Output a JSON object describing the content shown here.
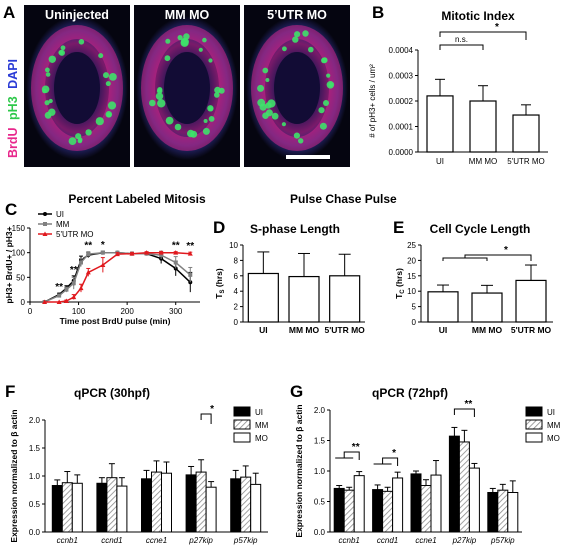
{
  "panels": {
    "A": {
      "letter": "A",
      "columns": [
        "Uninjected",
        "MM MO",
        "5’UTR MO"
      ],
      "channel_labels": [
        {
          "text": "BrdU",
          "color": "#e8288c"
        },
        {
          "text": "pH3",
          "color": "#2ec84a"
        },
        {
          "text": "DAPI",
          "color": "#2a3bd6"
        }
      ]
    },
    "B": {
      "letter": "B"
    },
    "C": {
      "letter": "C"
    },
    "D": {
      "letter": "D"
    },
    "E": {
      "letter": "E"
    },
    "F": {
      "letter": "F"
    },
    "G": {
      "letter": "G"
    }
  },
  "section_title": "Pulse Chase Pulse",
  "colors": {
    "ui": "#000000",
    "mm": "#808080",
    "mo": "#e0191e",
    "hatch": "#9a9a9a"
  },
  "chart_data": [
    {
      "id": "B",
      "type": "bar",
      "title": "Mitotic Index",
      "ylabel": "# of pH3+ cells / um²",
      "categories": [
        "UI",
        "MM MO",
        "5'UTR MO"
      ],
      "values": [
        0.00022,
        0.0002,
        0.000145
      ],
      "errors": [
        6.5e-05,
        6e-05,
        4e-05
      ],
      "ylim": [
        0,
        0.0004
      ],
      "yticks": [
        "0.0000",
        "0.0001",
        "0.0002",
        "0.0003",
        "0.0004"
      ],
      "annotations": [
        {
          "from": 0,
          "to": 1,
          "label": "n.s."
        },
        {
          "from": 0,
          "to": 2,
          "label": "*"
        }
      ]
    },
    {
      "id": "C",
      "type": "line",
      "title": "Percent Labeled Mitosis",
      "xlabel": "Time post BrdU pulse (min)",
      "ylabel": "pH3+ BrdU+ / pH3+",
      "xlim": [
        0,
        350
      ],
      "ylim": [
        0,
        150
      ],
      "xticks": [
        "0",
        "100",
        "200",
        "300"
      ],
      "yticks": [
        "0",
        "50",
        "100",
        "150"
      ],
      "x": [
        30,
        60,
        75,
        90,
        105,
        120,
        150,
        180,
        210,
        240,
        270,
        300,
        330
      ],
      "series": [
        {
          "name": "UI",
          "values": [
            0,
            15,
            28,
            43,
            85,
            95,
            100,
            100,
            98,
            98,
            88,
            68,
            40
          ],
          "errors": [
            0,
            3,
            5,
            10,
            8,
            5,
            3,
            2,
            3,
            3,
            10,
            15,
            20
          ]
        },
        {
          "name": "MM",
          "values": [
            0,
            13,
            25,
            38,
            80,
            97,
            100,
            100,
            98,
            98,
            95,
            80,
            55
          ],
          "errors": [
            0,
            3,
            5,
            12,
            8,
            5,
            3,
            2,
            3,
            3,
            8,
            12,
            15
          ]
        },
        {
          "name": "5'UTR MO",
          "values": [
            0,
            0,
            2,
            10,
            28,
            60,
            75,
            97,
            98,
            100,
            100,
            100,
            98
          ],
          "errors": [
            0,
            0,
            2,
            5,
            8,
            8,
            15,
            3,
            2,
            2,
            2,
            2,
            3
          ]
        }
      ],
      "stars": [
        {
          "x": 60,
          "label": "**"
        },
        {
          "x": 90,
          "label": "**"
        },
        {
          "x": 120,
          "label": "**"
        },
        {
          "x": 150,
          "label": "*"
        },
        {
          "x": 300,
          "label": "**"
        },
        {
          "x": 330,
          "label": "**"
        }
      ],
      "legend": "top-left"
    },
    {
      "id": "D",
      "type": "bar",
      "title": "S-phase Length",
      "ylabel_main": "T",
      "ylabel_sub": "S",
      "ylabel_tail": " (hrs)",
      "categories": [
        "UI",
        "MM MO",
        "5'UTR MO"
      ],
      "values": [
        6.3,
        5.9,
        6.0
      ],
      "errors": [
        2.8,
        3.0,
        2.8
      ],
      "ylim": [
        0,
        10
      ],
      "yticks": [
        "0",
        "2",
        "4",
        "6",
        "8",
        "10"
      ]
    },
    {
      "id": "E",
      "type": "bar",
      "title": "Cell Cycle Length",
      "ylabel_main": "T",
      "ylabel_sub": "C",
      "ylabel_tail": " (hrs)",
      "categories": [
        "UI",
        "MM MO",
        "5'UTR MO"
      ],
      "values": [
        9.8,
        9.4,
        13.5
      ],
      "errors": [
        2.2,
        2.5,
        5.0
      ],
      "ylim": [
        0,
        25
      ],
      "yticks": [
        "0",
        "5",
        "10",
        "15",
        "20",
        "25"
      ],
      "annotations": [
        {
          "from": "0-1",
          "to": 2,
          "label": "*"
        }
      ]
    },
    {
      "id": "F",
      "type": "bar",
      "title": "qPCR (30hpf)",
      "ylabel": "Expression normalized to β actin",
      "categories": [
        "ccnb1",
        "ccnd1",
        "ccne1",
        "p27kip",
        "p57kip"
      ],
      "series": [
        {
          "name": "UI",
          "values": [
            0.83,
            0.87,
            0.95,
            1.02,
            0.95
          ],
          "errors": [
            0.1,
            0.1,
            0.15,
            0.15,
            0.15
          ]
        },
        {
          "name": "MM",
          "values": [
            0.88,
            0.97,
            1.07,
            1.07,
            0.98
          ],
          "errors": [
            0.2,
            0.25,
            0.2,
            0.22,
            0.2
          ]
        },
        {
          "name": "MO",
          "values": [
            0.87,
            0.82,
            1.05,
            0.8,
            0.85
          ],
          "errors": [
            0.15,
            0.15,
            0.2,
            0.1,
            0.2
          ]
        }
      ],
      "ylim": [
        0,
        2.0
      ],
      "yticks": [
        "0.0",
        "0.5",
        "1.0",
        "1.5",
        "2.0"
      ],
      "annotations": [
        {
          "category": 3,
          "from": 1,
          "to": 2,
          "label": "*"
        }
      ],
      "legend": "top-right"
    },
    {
      "id": "G",
      "type": "bar",
      "title": "qPCR (72hpf)",
      "ylabel": "Expression normalized to β actin",
      "categories": [
        "ccnb1",
        "ccnd1",
        "ccne1",
        "p27kip",
        "p57kip"
      ],
      "series": [
        {
          "name": "UI",
          "values": [
            0.75,
            0.73,
            1.0,
            1.65,
            0.68
          ],
          "errors": [
            0.05,
            0.08,
            0.05,
            0.15,
            0.07
          ]
        },
        {
          "name": "MM",
          "values": [
            0.72,
            0.7,
            0.8,
            1.55,
            0.72
          ],
          "errors": [
            0.05,
            0.07,
            0.1,
            0.2,
            0.1
          ]
        },
        {
          "name": "MO",
          "values": [
            0.97,
            0.93,
            0.98,
            1.1,
            0.68
          ],
          "errors": [
            0.07,
            0.1,
            0.25,
            0.08,
            0.2
          ]
        }
      ],
      "ylim": [
        0,
        2.1
      ],
      "yticks": [
        "0.0",
        "0.5",
        "1.0",
        "1.5",
        "2.0"
      ],
      "annotations": [
        {
          "category": 0,
          "from": "0-1",
          "to": 2,
          "label": "**"
        },
        {
          "category": 1,
          "from": "0-1",
          "to": 2,
          "label": "*"
        },
        {
          "category": 3,
          "from": 0,
          "to": 2,
          "label": "**"
        }
      ],
      "legend": "top-right"
    }
  ]
}
